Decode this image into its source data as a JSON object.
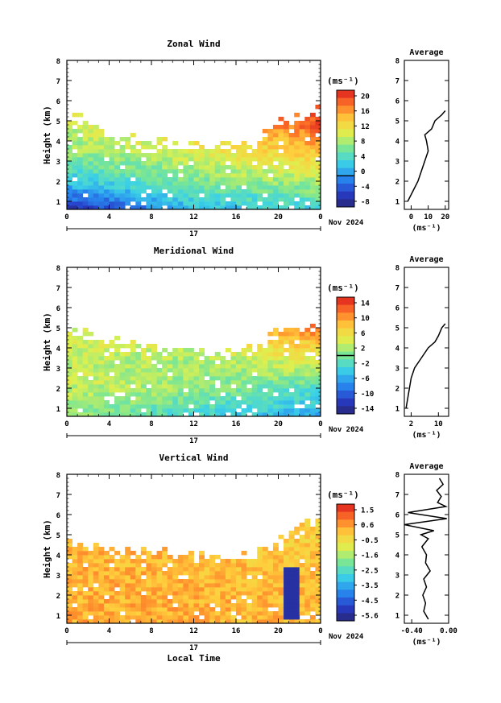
{
  "figure": {
    "date_label": "Nov 2024",
    "day_label": "17",
    "xlabel_bottom": "Local Time",
    "units": "(ms⁻¹)",
    "profile_title": "Average"
  },
  "chart_data": [
    {
      "type": "heatmap",
      "title": "Zonal Wind",
      "ylabel": "Height (km)",
      "xlabel": "",
      "xlim": [
        0,
        24
      ],
      "xticks": [
        "0",
        "4",
        "8",
        "12",
        "16",
        "20",
        "0"
      ],
      "ylim": [
        0.6,
        8
      ],
      "yticks": [
        "1",
        "2",
        "3",
        "4",
        "5",
        "6",
        "7",
        "8"
      ],
      "colorbar": {
        "label": "(ms⁻¹)",
        "range": [
          -8,
          22
        ],
        "ticks": [
          "20",
          "16",
          "12",
          "8",
          "4",
          "0",
          "-4",
          "-8"
        ],
        "marker": 0
      },
      "coverage_top_km": [
        [
          0,
          5.0
        ],
        [
          2,
          5.0
        ],
        [
          4,
          4.2
        ],
        [
          6,
          4.1
        ],
        [
          8,
          4.0
        ],
        [
          10,
          3.9
        ],
        [
          12,
          3.7
        ],
        [
          14,
          3.6
        ],
        [
          16,
          3.7
        ],
        [
          18,
          4.0
        ],
        [
          20,
          4.8
        ],
        [
          22,
          5.3
        ],
        [
          24,
          5.4
        ]
      ],
      "field_nodes_hour": [
        0,
        12,
        24
      ],
      "field_nodes_km": [
        0.6,
        2.0,
        3.5,
        5.0
      ],
      "field_values": [
        [
          -6,
          2,
          4
        ],
        [
          3,
          7,
          9
        ],
        [
          8,
          11,
          15
        ],
        [
          10,
          14,
          20
        ]
      ],
      "profile": {
        "title": "Average",
        "xlabel": "(ms⁻¹)",
        "xlim": [
          -4,
          22
        ],
        "xticks": [
          "0",
          "10",
          "20"
        ],
        "height_km": [
          1.0,
          1.5,
          2.0,
          2.5,
          3.0,
          3.5,
          4.0,
          4.3,
          4.6,
          5.0,
          5.3,
          5.5
        ],
        "value": [
          -2,
          1,
          4,
          6,
          8,
          10,
          9,
          8,
          12,
          14,
          18,
          20
        ]
      }
    },
    {
      "type": "heatmap",
      "title": "Meridional Wind",
      "ylabel": "Height (km)",
      "xlabel": "",
      "xlim": [
        0,
        24
      ],
      "xticks": [
        "0",
        "4",
        "8",
        "12",
        "16",
        "20",
        "0"
      ],
      "ylim": [
        0.6,
        8
      ],
      "yticks": [
        "1",
        "2",
        "3",
        "4",
        "5",
        "6",
        "7",
        "8"
      ],
      "colorbar": {
        "label": "(ms⁻¹)",
        "range": [
          -16,
          16
        ],
        "ticks": [
          "14",
          "10",
          "6",
          "2",
          "-2",
          "-6",
          "-10",
          "-14"
        ],
        "marker": 0
      },
      "coverage_top_km": [
        [
          0,
          4.8
        ],
        [
          2,
          4.6
        ],
        [
          4,
          4.2
        ],
        [
          6,
          4.1
        ],
        [
          8,
          4.0
        ],
        [
          10,
          3.9
        ],
        [
          12,
          3.8
        ],
        [
          14,
          3.6
        ],
        [
          16,
          3.7
        ],
        [
          18,
          4.0
        ],
        [
          20,
          4.8
        ],
        [
          22,
          5.2
        ],
        [
          24,
          5.0
        ]
      ],
      "field_nodes_hour": [
        0,
        12,
        24
      ],
      "field_nodes_km": [
        0.6,
        2.0,
        3.5,
        5.0
      ],
      "field_values": [
        [
          1,
          -3,
          -6
        ],
        [
          3,
          1,
          -2
        ],
        [
          3,
          2,
          5
        ],
        [
          4,
          6,
          12
        ]
      ],
      "profile": {
        "title": "Average",
        "xlabel": "(ms⁻¹)",
        "xlim": [
          0,
          13
        ],
        "xticks": [
          "2",
          "10"
        ],
        "height_km": [
          1.0,
          1.5,
          2.0,
          2.5,
          3.0,
          3.5,
          4.0,
          4.3,
          4.6,
          5.0,
          5.2
        ],
        "value": [
          0.5,
          1,
          1.5,
          2,
          3,
          5,
          7,
          9,
          10,
          11,
          12
        ]
      }
    },
    {
      "type": "heatmap",
      "title": "Vertical Wind",
      "ylabel": "Height (km)",
      "xlabel": "Local Time",
      "xlim": [
        0,
        24
      ],
      "xticks": [
        "0",
        "4",
        "8",
        "12",
        "16",
        "20",
        "0"
      ],
      "ylim": [
        0.6,
        8
      ],
      "yticks": [
        "1",
        "2",
        "3",
        "4",
        "5",
        "6",
        "7",
        "8"
      ],
      "colorbar": {
        "label": "(ms⁻¹)",
        "range": [
          -6.0,
          2.0
        ],
        "ticks": [
          "1.5",
          "0.6",
          "-0.5",
          "-1.6",
          "-2.5",
          "-3.5",
          "-4.5",
          "-5.6"
        ],
        "marker": null
      },
      "coverage_top_km": [
        [
          0,
          4.6
        ],
        [
          2,
          4.4
        ],
        [
          4,
          4.3
        ],
        [
          6,
          4.3
        ],
        [
          8,
          4.2
        ],
        [
          10,
          4.1
        ],
        [
          12,
          4.0
        ],
        [
          14,
          3.9
        ],
        [
          16,
          3.9
        ],
        [
          18,
          4.2
        ],
        [
          20,
          4.6
        ],
        [
          22,
          5.4
        ],
        [
          24,
          5.5
        ]
      ],
      "field_nodes_hour": [
        0,
        12,
        24
      ],
      "field_nodes_km": [
        0.6,
        2.0,
        3.5,
        5.0
      ],
      "field_values": [
        [
          0.4,
          0.3,
          0.2
        ],
        [
          0.3,
          0.3,
          0.1
        ],
        [
          0.3,
          0.2,
          0.0
        ],
        [
          0.3,
          0.2,
          -0.2
        ]
      ],
      "downdraft": {
        "hour": 21.2,
        "from_km": 0.8,
        "to_km": 3.4,
        "value": -5.5
      },
      "profile": {
        "title": "Average",
        "xlabel": "(ms⁻¹)",
        "xlim": [
          -0.48,
          0.0
        ],
        "xticks": [
          "-0.40",
          "0.00"
        ],
        "height_km": [
          0.8,
          1.2,
          1.6,
          2.0,
          2.4,
          2.8,
          3.2,
          3.6,
          4.0,
          4.4,
          4.8,
          5.0,
          5.2,
          5.5,
          5.8,
          6.1,
          6.4,
          6.6,
          6.9,
          7.2,
          7.5,
          7.8
        ],
        "value": [
          -0.22,
          -0.27,
          -0.25,
          -0.28,
          -0.24,
          -0.27,
          -0.2,
          -0.25,
          -0.24,
          -0.29,
          -0.22,
          -0.3,
          -0.16,
          -0.48,
          -0.02,
          -0.44,
          -0.03,
          -0.12,
          -0.08,
          -0.13,
          -0.06,
          -0.1
        ]
      }
    }
  ]
}
